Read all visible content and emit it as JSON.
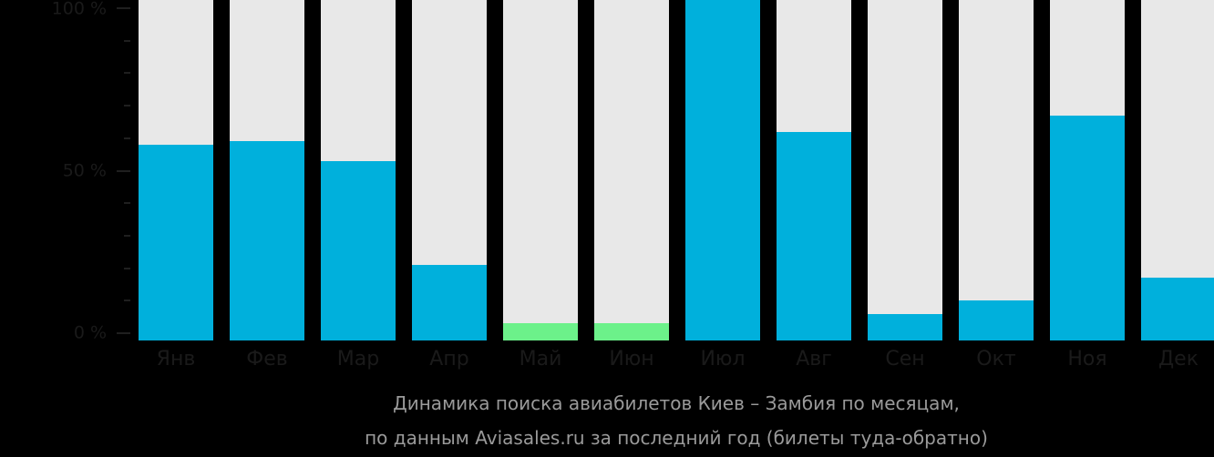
{
  "chart_data": {
    "type": "bar",
    "stacked_percent": true,
    "title": "Динамика поиска авиабилетов Киев – Замбия по месяцам,",
    "subtitle": "по данным Aviasales.ru за последний год (билеты туда-обратно)",
    "xlabel": "",
    "ylabel": "",
    "ylim": [
      0,
      100
    ],
    "y_ticks": [
      "0 %",
      "50 %",
      "100 %"
    ],
    "grid": false,
    "legend": null,
    "categories": [
      "Янв",
      "Фев",
      "Мар",
      "Апр",
      "Май",
      "Июн",
      "Июл",
      "Авг",
      "Сен",
      "Окт",
      "Ноя",
      "Дек"
    ],
    "values": [
      58,
      59,
      53,
      21,
      3,
      3,
      100,
      62,
      6,
      10,
      67,
      17
    ],
    "highlight": [
      "normal",
      "normal",
      "normal",
      "normal",
      "low",
      "low",
      "normal",
      "normal",
      "normal",
      "normal",
      "normal",
      "normal"
    ]
  },
  "colors": {
    "background": "#000000",
    "bar_track": "#e8e8e8",
    "bar_fill": "#00b0dc",
    "bar_fill_low": "#6cf18a",
    "axis_text": "#1a1a1a",
    "caption_text": "#9a9a9a"
  },
  "axis": {
    "labels": {
      "top": "100 %",
      "mid": "50 %",
      "bottom": "0 %"
    }
  },
  "caption": {
    "line1": "Динамика поиска авиабилетов Киев – Замбия по месяцам,",
    "line2": "по данным Aviasales.ru за последний год (билеты туда-обратно)"
  }
}
